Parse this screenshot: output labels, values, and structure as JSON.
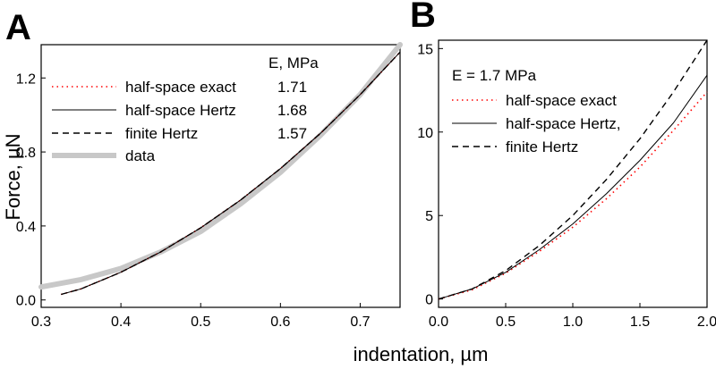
{
  "axis_titles": {
    "x": "indentation,  µm",
    "y": "Force,  µN"
  },
  "chart_data": [
    {
      "type": "line",
      "panel": "A",
      "xlim": [
        0.3,
        0.75
      ],
      "ylim": [
        -0.04,
        1.38
      ],
      "x_ticks": [
        "0.3",
        "0.4",
        "0.5",
        "0.6",
        "0.7"
      ],
      "y_ticks": [
        "0.0",
        "0.4",
        "0.8",
        "1.2"
      ],
      "legend_header": "E, MPa",
      "legend_position": "top-center",
      "series": [
        {
          "name": "half-space exact",
          "value": "1.71",
          "style": "dotted",
          "color": "#ff0000",
          "x": [
            0.325,
            0.35,
            0.4,
            0.45,
            0.5,
            0.55,
            0.6,
            0.65,
            0.7,
            0.75
          ],
          "y": [
            0.03,
            0.06,
            0.15,
            0.26,
            0.39,
            0.54,
            0.71,
            0.9,
            1.11,
            1.34
          ]
        },
        {
          "name": "half-space Hertz",
          "value": "1.68",
          "style": "solid-thin",
          "color": "#000000",
          "x": [
            0.325,
            0.35,
            0.4,
            0.45,
            0.5,
            0.55,
            0.6,
            0.65,
            0.7,
            0.75
          ],
          "y": [
            0.03,
            0.06,
            0.15,
            0.26,
            0.39,
            0.54,
            0.71,
            0.9,
            1.11,
            1.34
          ]
        },
        {
          "name": "finite Hertz",
          "value": "1.57",
          "style": "dashed",
          "color": "#000000",
          "x": [
            0.325,
            0.35,
            0.4,
            0.45,
            0.5,
            0.55,
            0.6,
            0.65,
            0.7,
            0.75
          ],
          "y": [
            0.03,
            0.06,
            0.15,
            0.26,
            0.39,
            0.54,
            0.71,
            0.9,
            1.11,
            1.34
          ]
        },
        {
          "name": "data",
          "value": "",
          "style": "thick",
          "color": "#c8c8c8",
          "x": [
            0.3,
            0.35,
            0.4,
            0.45,
            0.5,
            0.55,
            0.6,
            0.65,
            0.7,
            0.75
          ],
          "y": [
            0.07,
            0.11,
            0.17,
            0.26,
            0.37,
            0.52,
            0.69,
            0.89,
            1.11,
            1.38
          ]
        }
      ]
    },
    {
      "type": "line",
      "panel": "B",
      "xlim": [
        0.0,
        2.0
      ],
      "ylim": [
        -0.5,
        15.5
      ],
      "x_ticks": [
        "0.0",
        "0.5",
        "1.0",
        "1.5",
        "2.0"
      ],
      "y_ticks": [
        "0",
        "5",
        "10",
        "15"
      ],
      "annotation": "E = 1.7 MPa",
      "legend_position": "top-left",
      "series": [
        {
          "name": "half-space exact",
          "style": "dotted",
          "color": "#ff0000",
          "x": [
            0.0,
            0.25,
            0.5,
            0.75,
            1.0,
            1.25,
            1.5,
            1.75,
            2.0
          ],
          "y": [
            0.0,
            0.55,
            1.55,
            2.85,
            4.3,
            6.0,
            7.9,
            10.1,
            12.4
          ]
        },
        {
          "name": "half-space Hertz,",
          "style": "solid-thin",
          "color": "#000000",
          "x": [
            0.0,
            0.25,
            0.5,
            0.75,
            1.0,
            1.25,
            1.5,
            1.75,
            2.0
          ],
          "y": [
            0.0,
            0.6,
            1.6,
            2.95,
            4.5,
            6.3,
            8.3,
            10.55,
            13.4
          ]
        },
        {
          "name": "finite Hertz",
          "style": "dashed",
          "color": "#000000",
          "x": [
            0.0,
            0.25,
            0.5,
            0.75,
            1.0,
            1.25,
            1.5,
            1.75,
            2.0
          ],
          "y": [
            0.0,
            0.6,
            1.7,
            3.2,
            5.0,
            7.15,
            9.6,
            12.4,
            15.6
          ]
        }
      ]
    }
  ]
}
